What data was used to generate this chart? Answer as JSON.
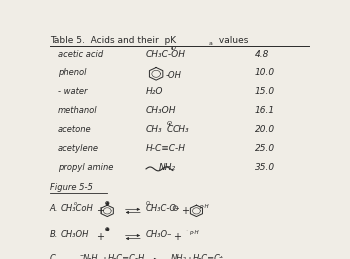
{
  "bg_color": "#f0ede6",
  "text_color": "#2a2a2a",
  "title": "Table 5.  Acids and their  pKa values",
  "rows": [
    {
      "name": "acetic acid",
      "pka": "4.8"
    },
    {
      "name": "phenol",
      "pka": "10.0"
    },
    {
      "name": "- water",
      "pka": "15.0"
    },
    {
      "name": "methanol",
      "pka": "16.1"
    },
    {
      "name": "acetone",
      "pka": "20.0"
    },
    {
      "name": "acetylene",
      "pka": "25.0"
    },
    {
      "name": "propyl amine",
      "pka": "35.0"
    }
  ],
  "fig_label": "Figure 5-5"
}
